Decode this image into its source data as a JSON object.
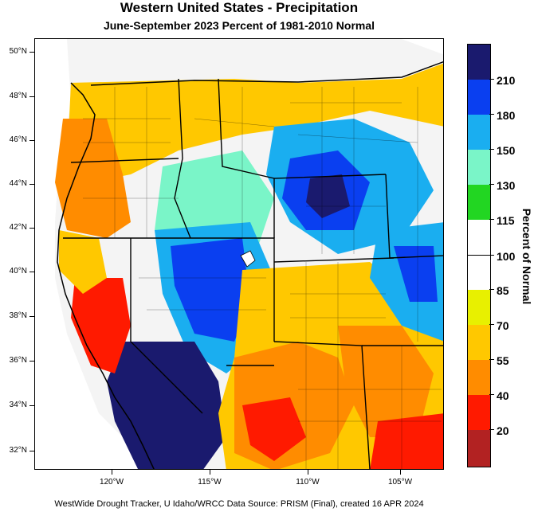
{
  "title": "Western United States - Precipitation",
  "subtitle": "June-September 2023  Percent of 1981-2010 Normal",
  "footer": "WestWide Drought Tracker, U Idaho/WRCC Data Source: PRISM (Final), created 16 APR 2024",
  "lat_labels": [
    "50°N",
    "48°N",
    "46°N",
    "44°N",
    "42°N",
    "40°N",
    "38°N",
    "36°N",
    "34°N",
    "32°N"
  ],
  "lon_labels": [
    "120°W",
    "115°W",
    "110°W",
    "105°W"
  ],
  "legend": {
    "title": "Percent of Normal",
    "labels": [
      "210",
      "180",
      "150",
      "130",
      "115",
      "100",
      "85",
      "70",
      "55",
      "40",
      "20"
    ],
    "colors": [
      "#1a1a6e",
      "#0a3ff0",
      "#1aaef0",
      "#7af5c8",
      "#22d622",
      "#ffffff",
      "#ffffff",
      "#e8f000",
      "#ffc800",
      "#ff8c00",
      "#ff1a00",
      "#b22222"
    ]
  },
  "colors": {
    "ocean": "#ffffff",
    "border": "#000000"
  }
}
